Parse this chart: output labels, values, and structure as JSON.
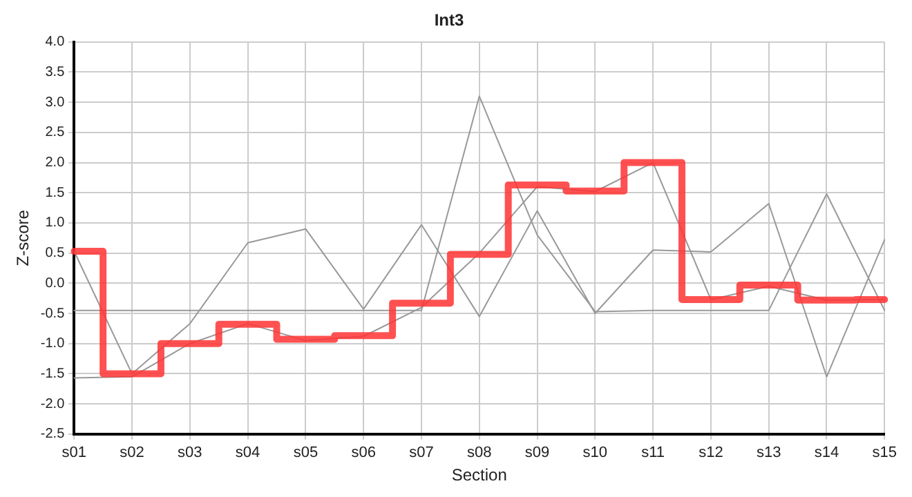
{
  "chart_data": {
    "type": "line",
    "title": "Int3",
    "xlabel": "Section",
    "ylabel": "Z-score",
    "categories": [
      "s01",
      "s02",
      "s03",
      "s04",
      "s05",
      "s06",
      "s07",
      "s08",
      "s09",
      "s10",
      "s11",
      "s12",
      "s13",
      "s14",
      "s15"
    ],
    "series": [
      {
        "color": "#999999",
        "values": [
          0.53,
          -1.5,
          -0.67,
          0.67,
          0.9,
          -0.43,
          0.97,
          -0.55,
          1.2,
          -0.5,
          0.55,
          0.52,
          1.32,
          -1.55,
          0.72
        ]
      },
      {
        "color": "#999999",
        "values": [
          -0.45,
          -0.45,
          -0.45,
          -0.45,
          -0.45,
          -0.45,
          -0.45,
          3.1,
          0.8,
          -0.47,
          -0.45,
          -0.45,
          -0.45,
          1.48,
          -0.45
        ]
      },
      {
        "color": "#999999",
        "values": [
          -1.57,
          -1.55,
          -1.0,
          -0.67,
          -0.95,
          -0.88,
          -0.4,
          0.5,
          1.6,
          1.52,
          2.0,
          -0.27,
          -0.05,
          -0.28,
          -0.27
        ]
      },
      {
        "type": "step",
        "color": "#ff3333",
        "values": [
          0.53,
          -1.5,
          -1.0,
          -0.68,
          -0.93,
          -0.87,
          -0.33,
          0.48,
          1.63,
          1.53,
          2.0,
          -0.27,
          -0.03,
          -0.28,
          -0.27
        ]
      }
    ],
    "ylim": [
      -2.5,
      4.0
    ],
    "yticks": [
      {
        "value": -2.5,
        "label": "-2.5"
      },
      {
        "value": -2,
        "label": "-2.0"
      },
      {
        "value": -1.5,
        "label": "-1.5"
      },
      {
        "value": -1,
        "label": "-1.0"
      },
      {
        "value": -0.5,
        "label": "-0.5"
      },
      {
        "value": 0,
        "label": "0.0"
      },
      {
        "value": 0.5,
        "label": "0.5"
      },
      {
        "value": 1,
        "label": "1.0"
      },
      {
        "value": 1.5,
        "label": "1.5"
      },
      {
        "value": 2,
        "label": "2.0"
      },
      {
        "value": 2.5,
        "label": "2.5"
      },
      {
        "value": 3,
        "label": "3.0"
      },
      {
        "value": 3.5,
        "label": "3.5"
      },
      {
        "value": 4,
        "label": "4.0"
      }
    ],
    "grid": true,
    "marker": "none"
  }
}
